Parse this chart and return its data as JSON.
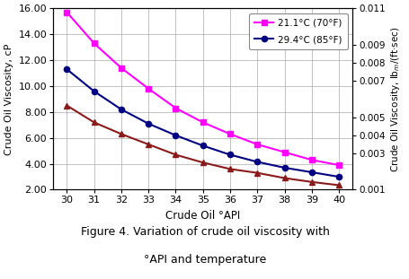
{
  "x": [
    30,
    31,
    32,
    33,
    34,
    35,
    36,
    37,
    38,
    39,
    40
  ],
  "y_70F": [
    15.7,
    13.3,
    11.4,
    9.8,
    8.3,
    7.2,
    6.3,
    5.5,
    4.9,
    4.3,
    3.9
  ],
  "y_85F": [
    11.3,
    9.6,
    8.2,
    7.1,
    6.2,
    5.4,
    4.7,
    4.15,
    3.7,
    3.35,
    3.0
  ],
  "y_3rd": [
    8.5,
    7.2,
    6.3,
    5.5,
    4.7,
    4.1,
    3.6,
    3.3,
    2.9,
    2.6,
    2.35
  ],
  "color_70F": "#FF00FF",
  "color_85F": "#000080",
  "color_3rd": "#8B1A1A",
  "xlabel": "Crude Oil °API",
  "ylabel_left": "Crude Oil Viscosity, cP",
  "ylabel_right": "Crude Oil Viscosity, lb$_m$/(ft·sec)",
  "legend_70F": "21.1°C (70°F)",
  "legend_85F": "29.4°C (85°F)",
  "ylim_left": [
    2.0,
    16.0
  ],
  "yticks_left": [
    2.0,
    4.0,
    6.0,
    8.0,
    10.0,
    12.0,
    14.0,
    16.0
  ],
  "yticks_right": [
    0.001,
    0.003,
    0.004,
    0.005,
    0.007,
    0.008,
    0.009,
    0.011
  ],
  "caption_line1": "Figure 4. Variation of crude oil viscosity with",
  "caption_line2": "°API and temperature",
  "bg_color": "#FFFFFF",
  "grid_color": "#AAAAAA",
  "factor": 0.000672
}
